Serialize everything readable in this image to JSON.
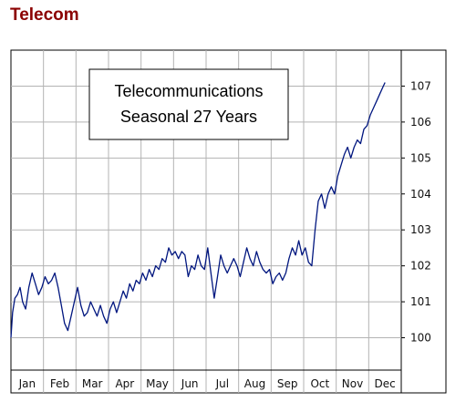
{
  "page": {
    "title": "Telecom"
  },
  "chart_data": {
    "type": "line",
    "title_lines": [
      "Telecommunications",
      "Seasonal 27 Years"
    ],
    "xlabel": "",
    "ylabel": "",
    "x_categories": [
      "Jan",
      "Feb",
      "Mar",
      "Apr",
      "May",
      "Jun",
      "Jul",
      "Aug",
      "Sep",
      "Oct",
      "Nov",
      "Dec"
    ],
    "y_ticks": [
      100,
      101,
      102,
      103,
      104,
      105,
      106,
      107
    ],
    "ylim": [
      99.1,
      108.0
    ],
    "grid": true,
    "y_axis_side": "right",
    "series": [
      {
        "color": "#00167f",
        "points": [
          [
            0.0,
            100.0
          ],
          [
            0.05,
            100.7
          ],
          [
            0.12,
            101.1
          ],
          [
            0.2,
            101.2
          ],
          [
            0.28,
            101.4
          ],
          [
            0.36,
            101.0
          ],
          [
            0.45,
            100.8
          ],
          [
            0.55,
            101.4
          ],
          [
            0.65,
            101.8
          ],
          [
            0.75,
            101.5
          ],
          [
            0.85,
            101.2
          ],
          [
            0.95,
            101.4
          ],
          [
            1.05,
            101.7
          ],
          [
            1.15,
            101.5
          ],
          [
            1.25,
            101.6
          ],
          [
            1.35,
            101.8
          ],
          [
            1.45,
            101.4
          ],
          [
            1.55,
            100.9
          ],
          [
            1.65,
            100.4
          ],
          [
            1.75,
            100.2
          ],
          [
            1.85,
            100.6
          ],
          [
            1.95,
            101.0
          ],
          [
            2.05,
            101.4
          ],
          [
            2.15,
            100.9
          ],
          [
            2.25,
            100.6
          ],
          [
            2.35,
            100.7
          ],
          [
            2.45,
            101.0
          ],
          [
            2.55,
            100.8
          ],
          [
            2.65,
            100.6
          ],
          [
            2.75,
            100.9
          ],
          [
            2.85,
            100.6
          ],
          [
            2.95,
            100.4
          ],
          [
            3.05,
            100.8
          ],
          [
            3.15,
            101.0
          ],
          [
            3.25,
            100.7
          ],
          [
            3.35,
            101.0
          ],
          [
            3.45,
            101.3
          ],
          [
            3.55,
            101.1
          ],
          [
            3.65,
            101.5
          ],
          [
            3.75,
            101.3
          ],
          [
            3.85,
            101.6
          ],
          [
            3.95,
            101.5
          ],
          [
            4.05,
            101.8
          ],
          [
            4.15,
            101.6
          ],
          [
            4.25,
            101.9
          ],
          [
            4.35,
            101.7
          ],
          [
            4.45,
            102.0
          ],
          [
            4.55,
            101.9
          ],
          [
            4.65,
            102.2
          ],
          [
            4.75,
            102.1
          ],
          [
            4.85,
            102.5
          ],
          [
            4.95,
            102.3
          ],
          [
            5.05,
            102.4
          ],
          [
            5.15,
            102.2
          ],
          [
            5.25,
            102.4
          ],
          [
            5.35,
            102.3
          ],
          [
            5.45,
            101.7
          ],
          [
            5.55,
            102.0
          ],
          [
            5.65,
            101.9
          ],
          [
            5.75,
            102.3
          ],
          [
            5.85,
            102.0
          ],
          [
            5.95,
            101.9
          ],
          [
            6.05,
            102.5
          ],
          [
            6.15,
            101.8
          ],
          [
            6.25,
            101.1
          ],
          [
            6.35,
            101.7
          ],
          [
            6.45,
            102.3
          ],
          [
            6.55,
            102.0
          ],
          [
            6.65,
            101.8
          ],
          [
            6.75,
            102.0
          ],
          [
            6.85,
            102.2
          ],
          [
            6.95,
            102.0
          ],
          [
            7.05,
            101.7
          ],
          [
            7.15,
            102.1
          ],
          [
            7.25,
            102.5
          ],
          [
            7.35,
            102.2
          ],
          [
            7.45,
            102.0
          ],
          [
            7.55,
            102.4
          ],
          [
            7.65,
            102.1
          ],
          [
            7.75,
            101.9
          ],
          [
            7.85,
            101.8
          ],
          [
            7.95,
            101.9
          ],
          [
            8.05,
            101.5
          ],
          [
            8.15,
            101.7
          ],
          [
            8.25,
            101.8
          ],
          [
            8.35,
            101.6
          ],
          [
            8.45,
            101.8
          ],
          [
            8.55,
            102.2
          ],
          [
            8.65,
            102.5
          ],
          [
            8.75,
            102.3
          ],
          [
            8.85,
            102.7
          ],
          [
            8.95,
            102.3
          ],
          [
            9.05,
            102.5
          ],
          [
            9.15,
            102.1
          ],
          [
            9.25,
            102.0
          ],
          [
            9.35,
            103.0
          ],
          [
            9.45,
            103.8
          ],
          [
            9.55,
            104.0
          ],
          [
            9.65,
            103.6
          ],
          [
            9.75,
            104.0
          ],
          [
            9.85,
            104.2
          ],
          [
            9.95,
            104.0
          ],
          [
            10.05,
            104.5
          ],
          [
            10.15,
            104.8
          ],
          [
            10.25,
            105.1
          ],
          [
            10.35,
            105.3
          ],
          [
            10.45,
            105.0
          ],
          [
            10.55,
            105.3
          ],
          [
            10.65,
            105.5
          ],
          [
            10.75,
            105.4
          ],
          [
            10.85,
            105.8
          ],
          [
            10.95,
            105.9
          ],
          [
            11.05,
            106.2
          ],
          [
            11.15,
            106.4
          ],
          [
            11.25,
            106.6
          ],
          [
            11.35,
            106.8
          ],
          [
            11.45,
            107.0
          ],
          [
            11.5,
            107.1
          ]
        ]
      }
    ]
  }
}
